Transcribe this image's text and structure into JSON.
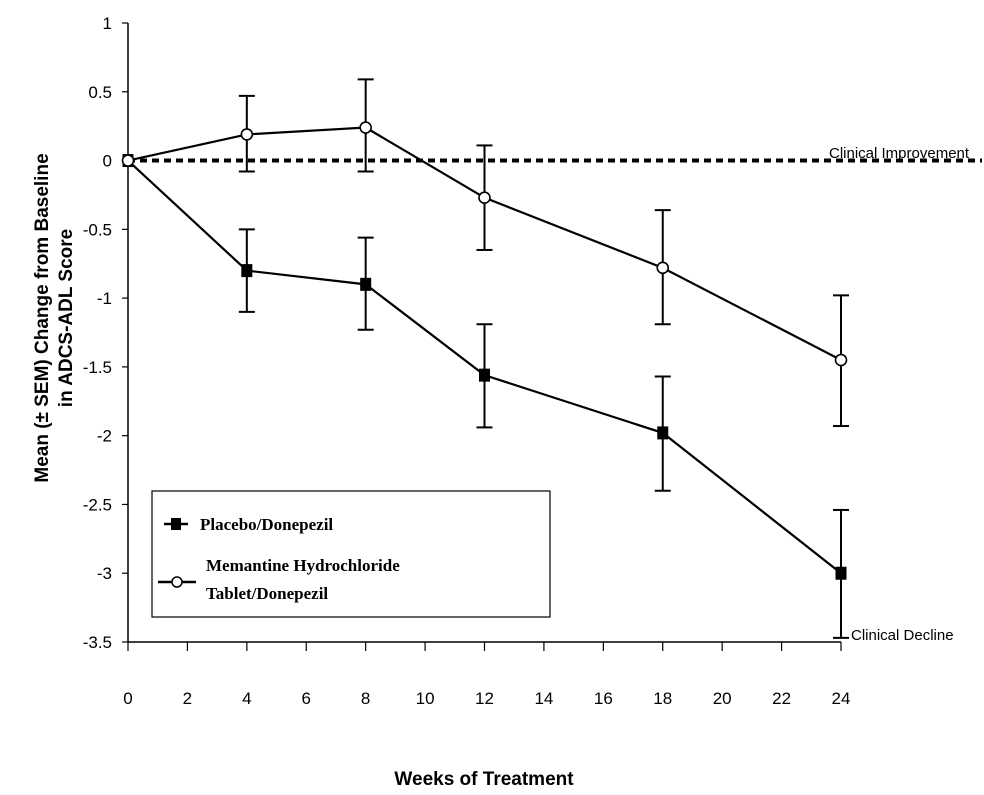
{
  "chart_data": {
    "type": "line",
    "title": "",
    "xlabel": "Weeks of Treatment",
    "ylabel": "Mean (± SEM) Change from Baseline in ADCS-ADL Score",
    "ylabel_lines": [
      "Mean (± SEM) Change from Baseline",
      "in ADCS-ADL Score"
    ],
    "xlim": [
      0,
      24
    ],
    "ylim": [
      -3.5,
      1
    ],
    "x_ticks": [
      0,
      2,
      4,
      6,
      8,
      10,
      12,
      14,
      16,
      18,
      20,
      22,
      24
    ],
    "y_ticks": [
      1,
      0.5,
      0,
      -0.5,
      -1,
      -1.5,
      -2,
      -2.5,
      -3,
      -3.5
    ],
    "y_tick_labels": [
      "1",
      "0.5",
      "0",
      "-0.5",
      "-1",
      "-1.5",
      "-2",
      "-2.5",
      "-3",
      "-3.5"
    ],
    "reference_line": {
      "y": 0,
      "style": "dashed"
    },
    "annotations": [
      {
        "text": "Clinical Improvement",
        "anchor_y": 0
      },
      {
        "text": "Clinical Decline",
        "anchor_y": -3.5
      }
    ],
    "legend": {
      "placement": "bottom-left",
      "entries": [
        {
          "label_lines": [
            "Placebo/Donepezil"
          ],
          "marker": "filled-square"
        },
        {
          "label_lines": [
            "Memantine Hydrochloride",
            "Tablet/Donepezil"
          ],
          "marker": "open-circle"
        }
      ]
    },
    "series": [
      {
        "name": "Placebo/Donepezil",
        "marker": "filled-square",
        "x": [
          0,
          4,
          8,
          12,
          18,
          24
        ],
        "y": [
          0,
          -0.8,
          -0.9,
          -1.56,
          -1.98,
          -3.0
        ],
        "err_low": [
          0,
          -1.1,
          -1.23,
          -1.94,
          -2.4,
          -3.47
        ],
        "err_high": [
          0,
          -0.5,
          -0.56,
          -1.19,
          -1.57,
          -2.54
        ]
      },
      {
        "name": "Memantine Hydrochloride Tablet/Donepezil",
        "marker": "open-circle",
        "x": [
          0,
          4,
          8,
          12,
          18,
          24
        ],
        "y": [
          0,
          0.19,
          0.24,
          -0.27,
          -0.78,
          -1.45
        ],
        "err_low": [
          0,
          -0.08,
          -0.08,
          -0.65,
          -1.19,
          -1.93
        ],
        "err_high": [
          0,
          0.47,
          0.59,
          0.11,
          -0.36,
          -0.98
        ]
      }
    ],
    "colors": {
      "axis": "#000000",
      "line": "#000000",
      "background": "#ffffff"
    }
  }
}
